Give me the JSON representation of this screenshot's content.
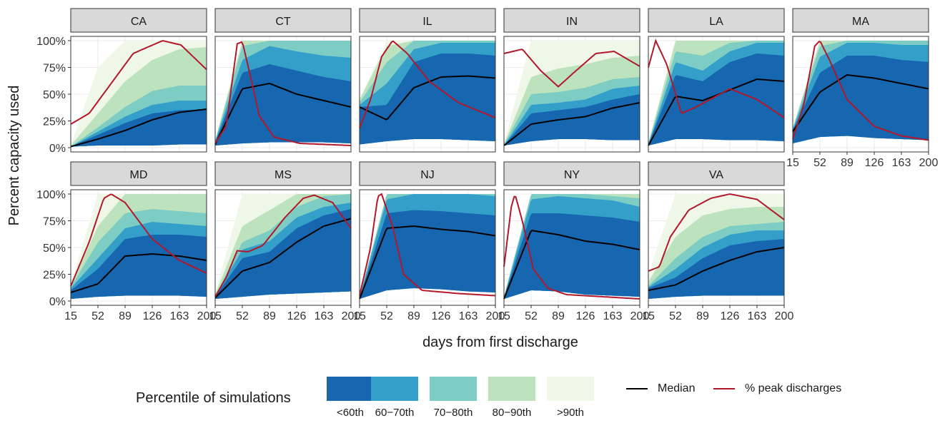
{
  "chart_data": {
    "type": "area",
    "ylabel": "Percent capacity used",
    "xlabel": "days from first discharge",
    "x_ticks": [
      15,
      52,
      89,
      126,
      163,
      200
    ],
    "x_range": [
      15,
      200
    ],
    "y_ticks": [
      "0%",
      "25%",
      "50%",
      "75%",
      "100%"
    ],
    "y_range": [
      0,
      1
    ],
    "grid": true,
    "legend": {
      "title": "Percentile of simulations",
      "bands": [
        "<60th",
        "60−70th",
        "70−80th",
        "80−90th",
        ">90th"
      ],
      "band_colors": [
        "#1666b0",
        "#34a0ca",
        "#7dcdc4",
        "#bde3be",
        "#eff7e8"
      ],
      "lines": [
        {
          "name": "Median",
          "color": "#000000"
        },
        {
          "name": "% peak discharges",
          "color": "#b2182b"
        }
      ],
      "placement": "bottom"
    },
    "panels": [
      {
        "state": "CA",
        "lower": [
          0.01,
          0.02,
          0.02,
          0.02,
          0.03,
          0.03
        ],
        "median": [
          0.01,
          0.08,
          0.16,
          0.26,
          0.33,
          0.36
        ],
        "bands": [
          [
            0.01,
            0.12,
            0.23,
            0.32,
            0.35,
            0.36
          ],
          [
            0.01,
            0.15,
            0.29,
            0.4,
            0.44,
            0.44
          ],
          [
            0.01,
            0.19,
            0.38,
            0.53,
            0.58,
            0.58
          ],
          [
            0.02,
            0.32,
            0.62,
            0.82,
            0.92,
            0.94
          ],
          [
            0.02,
            0.75,
            1.0,
            1.0,
            1.0,
            1.0
          ]
        ],
        "peak": [
          [
            15,
            0.22
          ],
          [
            40,
            0.32
          ],
          [
            70,
            0.6
          ],
          [
            100,
            0.88
          ],
          [
            140,
            1.0
          ],
          [
            165,
            0.96
          ],
          [
            200,
            0.73
          ]
        ]
      },
      {
        "state": "CT",
        "lower": [
          0.02,
          0.04,
          0.05,
          0.05,
          0.05,
          0.04
        ],
        "median": [
          0.03,
          0.55,
          0.6,
          0.5,
          0.44,
          0.38
        ],
        "bands": [
          [
            0.05,
            0.7,
            0.78,
            0.72,
            0.66,
            0.62
          ],
          [
            0.06,
            0.82,
            0.95,
            0.9,
            0.86,
            0.84
          ],
          [
            0.06,
            0.95,
            1.0,
            1.0,
            1.0,
            1.0
          ],
          [
            0.07,
            1.0,
            1.0,
            1.0,
            1.0,
            1.0
          ],
          [
            0.08,
            1.0,
            1.0,
            1.0,
            1.0,
            1.0
          ]
        ],
        "peak": [
          [
            15,
            0.04
          ],
          [
            30,
            0.2
          ],
          [
            45,
            0.97
          ],
          [
            52,
            0.99
          ],
          [
            62,
            0.7
          ],
          [
            75,
            0.3
          ],
          [
            95,
            0.1
          ],
          [
            130,
            0.04
          ],
          [
            200,
            0.02
          ]
        ]
      },
      {
        "state": "IL",
        "lower": [
          0.03,
          0.06,
          0.08,
          0.08,
          0.07,
          0.06
        ],
        "median": [
          0.38,
          0.26,
          0.56,
          0.66,
          0.67,
          0.65
        ],
        "bands": [
          [
            0.38,
            0.4,
            0.8,
            0.88,
            0.88,
            0.86
          ],
          [
            0.4,
            0.6,
            0.92,
            0.98,
            0.98,
            0.98
          ],
          [
            0.42,
            0.8,
            1.0,
            1.0,
            1.0,
            1.0
          ],
          [
            0.45,
            0.95,
            1.0,
            1.0,
            1.0,
            1.0
          ],
          [
            0.45,
            1.0,
            1.0,
            1.0,
            1.0,
            1.0
          ]
        ],
        "peak": [
          [
            15,
            0.18
          ],
          [
            30,
            0.45
          ],
          [
            45,
            0.85
          ],
          [
            60,
            1.0
          ],
          [
            80,
            0.88
          ],
          [
            110,
            0.62
          ],
          [
            150,
            0.42
          ],
          [
            200,
            0.28
          ]
        ]
      },
      {
        "state": "IN",
        "lower": [
          0.02,
          0.06,
          0.08,
          0.08,
          0.07,
          0.07
        ],
        "median": [
          0.02,
          0.22,
          0.26,
          0.29,
          0.37,
          0.42
        ],
        "bands": [
          [
            0.02,
            0.32,
            0.35,
            0.38,
            0.45,
            0.5
          ],
          [
            0.02,
            0.4,
            0.42,
            0.45,
            0.55,
            0.58
          ],
          [
            0.03,
            0.5,
            0.52,
            0.56,
            0.64,
            0.66
          ],
          [
            0.03,
            0.66,
            0.74,
            0.78,
            0.84,
            0.86
          ],
          [
            0.04,
            1.0,
            1.0,
            1.0,
            1.0,
            1.0
          ]
        ],
        "peak": [
          [
            15,
            0.88
          ],
          [
            40,
            0.92
          ],
          [
            65,
            0.72
          ],
          [
            89,
            0.57
          ],
          [
            110,
            0.7
          ],
          [
            140,
            0.88
          ],
          [
            165,
            0.9
          ],
          [
            200,
            0.76
          ]
        ]
      },
      {
        "state": "LA",
        "lower": [
          0.02,
          0.08,
          0.08,
          0.07,
          0.07,
          0.06
        ],
        "median": [
          0.02,
          0.48,
          0.44,
          0.54,
          0.64,
          0.62
        ],
        "bands": [
          [
            0.03,
            0.68,
            0.62,
            0.8,
            0.88,
            0.86
          ],
          [
            0.03,
            0.8,
            0.72,
            0.9,
            0.98,
            0.98
          ],
          [
            0.04,
            0.9,
            0.86,
            0.98,
            1.0,
            1.0
          ],
          [
            0.04,
            1.0,
            1.0,
            1.0,
            1.0,
            1.0
          ],
          [
            0.05,
            1.0,
            1.0,
            1.0,
            1.0,
            1.0
          ]
        ],
        "peak": [
          [
            15,
            0.75
          ],
          [
            25,
            1.0
          ],
          [
            40,
            0.78
          ],
          [
            60,
            0.32
          ],
          [
            80,
            0.38
          ],
          [
            126,
            0.55
          ],
          [
            163,
            0.45
          ],
          [
            200,
            0.28
          ]
        ]
      },
      {
        "state": "MA",
        "lower": [
          0.04,
          0.1,
          0.11,
          0.09,
          0.08,
          0.07
        ],
        "median": [
          0.15,
          0.52,
          0.68,
          0.65,
          0.6,
          0.55
        ],
        "bands": [
          [
            0.16,
            0.7,
            0.86,
            0.86,
            0.82,
            0.8
          ],
          [
            0.17,
            0.85,
            0.98,
            0.98,
            0.96,
            0.96
          ],
          [
            0.18,
            0.95,
            1.0,
            1.0,
            1.0,
            1.0
          ],
          [
            0.18,
            1.0,
            1.0,
            1.0,
            1.0,
            1.0
          ],
          [
            0.2,
            1.0,
            1.0,
            1.0,
            1.0,
            1.0
          ]
        ],
        "peak": [
          [
            15,
            0.08
          ],
          [
            30,
            0.4
          ],
          [
            45,
            0.95
          ],
          [
            52,
            1.0
          ],
          [
            65,
            0.82
          ],
          [
            89,
            0.45
          ],
          [
            126,
            0.2
          ],
          [
            163,
            0.11
          ],
          [
            200,
            0.07
          ]
        ]
      },
      {
        "state": "MD",
        "lower": [
          0.02,
          0.04,
          0.05,
          0.05,
          0.05,
          0.04
        ],
        "median": [
          0.08,
          0.16,
          0.42,
          0.44,
          0.42,
          0.38
        ],
        "bands": [
          [
            0.1,
            0.3,
            0.58,
            0.62,
            0.62,
            0.6
          ],
          [
            0.12,
            0.4,
            0.68,
            0.74,
            0.72,
            0.7
          ],
          [
            0.13,
            0.55,
            0.82,
            0.86,
            0.84,
            0.82
          ],
          [
            0.14,
            0.7,
            1.0,
            1.0,
            1.0,
            1.0
          ],
          [
            0.15,
            1.0,
            1.0,
            1.0,
            1.0,
            1.0
          ]
        ],
        "peak": [
          [
            15,
            0.14
          ],
          [
            40,
            0.55
          ],
          [
            60,
            0.96
          ],
          [
            70,
            1.0
          ],
          [
            89,
            0.92
          ],
          [
            126,
            0.58
          ],
          [
            163,
            0.38
          ],
          [
            200,
            0.26
          ]
        ]
      },
      {
        "state": "MS",
        "lower": [
          0.02,
          0.04,
          0.06,
          0.07,
          0.08,
          0.09
        ],
        "median": [
          0.03,
          0.28,
          0.36,
          0.55,
          0.7,
          0.77
        ],
        "bands": [
          [
            0.04,
            0.4,
            0.46,
            0.68,
            0.8,
            0.86
          ],
          [
            0.05,
            0.48,
            0.56,
            0.78,
            0.88,
            0.92
          ],
          [
            0.05,
            0.55,
            0.66,
            0.88,
            0.98,
            1.0
          ],
          [
            0.06,
            0.7,
            0.85,
            1.0,
            1.0,
            1.0
          ],
          [
            0.07,
            1.0,
            1.0,
            1.0,
            1.0,
            1.0
          ]
        ],
        "peak": [
          [
            15,
            0.04
          ],
          [
            30,
            0.22
          ],
          [
            45,
            0.47
          ],
          [
            60,
            0.46
          ],
          [
            80,
            0.52
          ],
          [
            110,
            0.78
          ],
          [
            135,
            0.96
          ],
          [
            150,
            0.99
          ],
          [
            175,
            0.92
          ],
          [
            200,
            0.68
          ]
        ]
      },
      {
        "state": "NJ",
        "lower": [
          0.02,
          0.1,
          0.12,
          0.11,
          0.09,
          0.08
        ],
        "median": [
          0.02,
          0.68,
          0.7,
          0.67,
          0.65,
          0.61
        ],
        "bands": [
          [
            0.03,
            0.82,
            0.85,
            0.84,
            0.82,
            0.8
          ],
          [
            0.03,
            0.95,
            1.0,
            1.0,
            1.0,
            0.98
          ],
          [
            0.04,
            1.0,
            1.0,
            1.0,
            1.0,
            1.0
          ],
          [
            0.04,
            1.0,
            1.0,
            1.0,
            1.0,
            1.0
          ],
          [
            0.05,
            1.0,
            1.0,
            1.0,
            1.0,
            1.0
          ]
        ],
        "peak": [
          [
            15,
            0.05
          ],
          [
            30,
            0.5
          ],
          [
            40,
            0.98
          ],
          [
            45,
            1.0
          ],
          [
            60,
            0.7
          ],
          [
            75,
            0.25
          ],
          [
            100,
            0.1
          ],
          [
            150,
            0.07
          ],
          [
            200,
            0.05
          ]
        ]
      },
      {
        "state": "NY",
        "lower": [
          0.02,
          0.1,
          0.09,
          0.06,
          0.05,
          0.04
        ],
        "median": [
          0.02,
          0.66,
          0.62,
          0.56,
          0.53,
          0.48
        ],
        "bands": [
          [
            0.03,
            0.82,
            0.82,
            0.8,
            0.78,
            0.74
          ],
          [
            0.03,
            0.95,
            0.98,
            0.96,
            0.94,
            0.88
          ],
          [
            0.04,
            1.0,
            1.0,
            1.0,
            0.98,
            0.96
          ],
          [
            0.04,
            1.0,
            1.0,
            1.0,
            1.0,
            1.0
          ],
          [
            0.05,
            1.0,
            1.0,
            1.0,
            1.0,
            1.0
          ]
        ],
        "peak": [
          [
            15,
            0.32
          ],
          [
            25,
            0.88
          ],
          [
            30,
            1.0
          ],
          [
            40,
            0.75
          ],
          [
            55,
            0.3
          ],
          [
            75,
            0.12
          ],
          [
            100,
            0.06
          ],
          [
            150,
            0.04
          ],
          [
            200,
            0.02
          ]
        ]
      },
      {
        "state": "VA",
        "lower": [
          0.02,
          0.04,
          0.05,
          0.05,
          0.05,
          0.05
        ],
        "median": [
          0.1,
          0.15,
          0.28,
          0.38,
          0.46,
          0.5
        ],
        "bands": [
          [
            0.12,
            0.22,
            0.4,
            0.52,
            0.56,
            0.58
          ],
          [
            0.13,
            0.3,
            0.5,
            0.62,
            0.66,
            0.66
          ],
          [
            0.14,
            0.4,
            0.6,
            0.7,
            0.72,
            0.74
          ],
          [
            0.18,
            0.6,
            0.8,
            0.86,
            0.88,
            0.88
          ],
          [
            0.25,
            1.0,
            1.0,
            1.0,
            1.0,
            1.0
          ]
        ],
        "peak": [
          [
            15,
            0.28
          ],
          [
            30,
            0.32
          ],
          [
            45,
            0.6
          ],
          [
            70,
            0.85
          ],
          [
            100,
            0.96
          ],
          [
            126,
            1.0
          ],
          [
            163,
            0.95
          ],
          [
            200,
            0.76
          ]
        ]
      }
    ]
  }
}
